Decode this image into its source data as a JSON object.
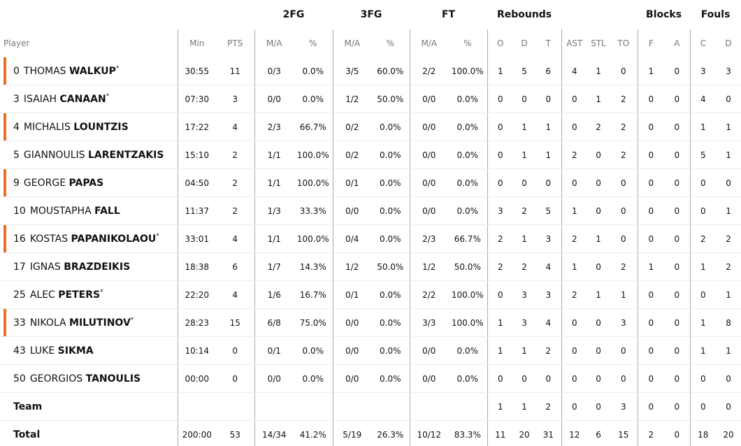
{
  "groups": {
    "fg2": "2FG",
    "fg3": "3FG",
    "ft": "FT",
    "reb": "Rebounds",
    "blk": "Blocks",
    "fouls": "Fouls"
  },
  "headers": [
    "Player",
    "Min",
    "PTS",
    "M/A",
    "%",
    "M/A",
    "%",
    "M/A",
    "%",
    "O",
    "D",
    "T",
    "AST",
    "STL",
    "TO",
    "F",
    "A",
    "C",
    "D"
  ],
  "accent": "#f26b21",
  "players": [
    {
      "num": "0",
      "first": "THOMAS",
      "last": "WALKUP",
      "starter": true,
      "on_court": true,
      "stats": [
        "30:55",
        "11",
        "0/3",
        "0.0%",
        "3/5",
        "60.0%",
        "2/2",
        "100.0%",
        "1",
        "5",
        "6",
        "4",
        "1",
        "0",
        "1",
        "0",
        "3",
        "3"
      ]
    },
    {
      "num": "3",
      "first": "ISAIAH",
      "last": "CANAAN",
      "starter": true,
      "on_court": false,
      "stats": [
        "07:30",
        "3",
        "0/0",
        "0.0%",
        "1/2",
        "50.0%",
        "0/0",
        "0.0%",
        "0",
        "0",
        "0",
        "0",
        "1",
        "2",
        "0",
        "0",
        "4",
        "0"
      ]
    },
    {
      "num": "4",
      "first": "MICHALIS",
      "last": "LOUNTZIS",
      "starter": false,
      "on_court": true,
      "stats": [
        "17:22",
        "4",
        "2/3",
        "66.7%",
        "0/2",
        "0.0%",
        "0/0",
        "0.0%",
        "0",
        "1",
        "1",
        "0",
        "2",
        "2",
        "0",
        "0",
        "1",
        "1"
      ]
    },
    {
      "num": "5",
      "first": "GIANNOULIS",
      "last": "LARENTZAKIS",
      "starter": false,
      "on_court": false,
      "stats": [
        "15:10",
        "2",
        "1/1",
        "100.0%",
        "0/2",
        "0.0%",
        "0/0",
        "0.0%",
        "0",
        "1",
        "1",
        "2",
        "0",
        "2",
        "0",
        "0",
        "5",
        "1"
      ]
    },
    {
      "num": "9",
      "first": "GEORGE",
      "last": "PAPAS",
      "starter": false,
      "on_court": true,
      "stats": [
        "04:50",
        "2",
        "1/1",
        "100.0%",
        "0/1",
        "0.0%",
        "0/0",
        "0.0%",
        "0",
        "0",
        "0",
        "0",
        "0",
        "0",
        "0",
        "0",
        "0",
        "0"
      ]
    },
    {
      "num": "10",
      "first": "MOUSTAPHA",
      "last": "FALL",
      "starter": false,
      "on_court": false,
      "stats": [
        "11:37",
        "2",
        "1/3",
        "33.3%",
        "0/0",
        "0.0%",
        "0/0",
        "0.0%",
        "3",
        "2",
        "5",
        "1",
        "0",
        "0",
        "0",
        "0",
        "0",
        "1"
      ]
    },
    {
      "num": "16",
      "first": "KOSTAS",
      "last": "PAPANIKOLAOU",
      "starter": true,
      "on_court": true,
      "stats": [
        "33:01",
        "4",
        "1/1",
        "100.0%",
        "0/4",
        "0.0%",
        "2/3",
        "66.7%",
        "2",
        "1",
        "3",
        "2",
        "1",
        "0",
        "0",
        "0",
        "2",
        "2"
      ]
    },
    {
      "num": "17",
      "first": "IGNAS",
      "last": "BRAZDEIKIS",
      "starter": false,
      "on_court": false,
      "stats": [
        "18:38",
        "6",
        "1/7",
        "14.3%",
        "1/2",
        "50.0%",
        "1/2",
        "50.0%",
        "2",
        "2",
        "4",
        "1",
        "0",
        "2",
        "1",
        "0",
        "1",
        "2"
      ]
    },
    {
      "num": "25",
      "first": "ALEC",
      "last": "PETERS",
      "starter": true,
      "on_court": false,
      "stats": [
        "22:20",
        "4",
        "1/6",
        "16.7%",
        "0/1",
        "0.0%",
        "2/2",
        "100.0%",
        "0",
        "3",
        "3",
        "2",
        "1",
        "1",
        "0",
        "0",
        "0",
        "1"
      ]
    },
    {
      "num": "33",
      "first": "NIKOLA",
      "last": "MILUTINOV",
      "starter": true,
      "on_court": true,
      "stats": [
        "28:23",
        "15",
        "6/8",
        "75.0%",
        "0/0",
        "0.0%",
        "3/3",
        "100.0%",
        "1",
        "3",
        "4",
        "0",
        "0",
        "3",
        "0",
        "0",
        "1",
        "8"
      ]
    },
    {
      "num": "43",
      "first": "LUKE",
      "last": "SIKMA",
      "starter": false,
      "on_court": false,
      "stats": [
        "10:14",
        "0",
        "0/1",
        "0.0%",
        "0/0",
        "0.0%",
        "0/0",
        "0.0%",
        "1",
        "1",
        "2",
        "0",
        "0",
        "0",
        "0",
        "0",
        "1",
        "1"
      ]
    },
    {
      "num": "50",
      "first": "GEORGIOS",
      "last": "TANOULIS",
      "starter": false,
      "on_court": false,
      "stats": [
        "00:00",
        "0",
        "0/0",
        "0.0%",
        "0/0",
        "0.0%",
        "0/0",
        "0.0%",
        "0",
        "0",
        "0",
        "0",
        "0",
        "0",
        "0",
        "0",
        "0",
        "0"
      ]
    }
  ],
  "team": {
    "label": "Team",
    "stats": [
      "",
      "",
      "",
      "",
      "",
      "",
      "",
      "",
      "1",
      "1",
      "2",
      "0",
      "0",
      "3",
      "0",
      "0",
      "0",
      "0"
    ]
  },
  "total": {
    "label": "Total",
    "stats": [
      "200:00",
      "53",
      "14/34",
      "41.2%",
      "5/19",
      "26.3%",
      "10/12",
      "83.3%",
      "11",
      "20",
      "31",
      "12",
      "6",
      "15",
      "2",
      "0",
      "18",
      "20"
    ]
  }
}
